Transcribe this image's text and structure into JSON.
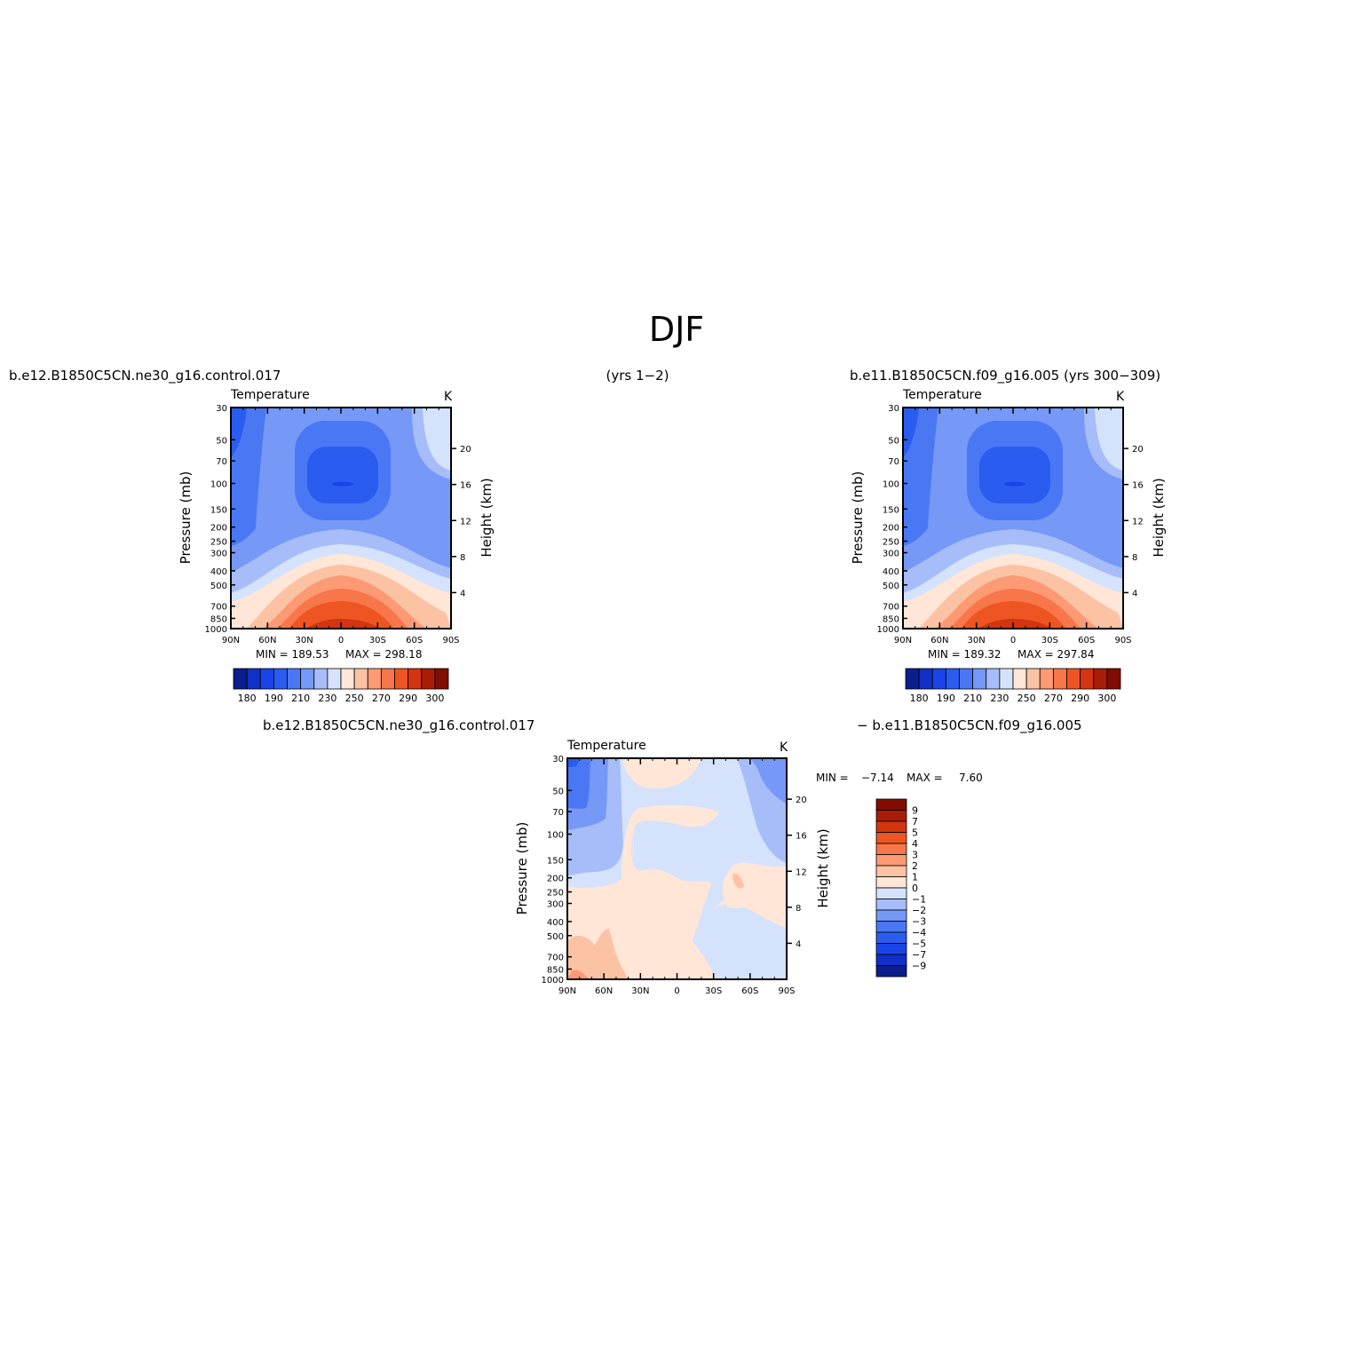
{
  "figure": {
    "season_title": "DJF",
    "header_left": "b.e12.B1850C5CN.ne30_g16.control.017",
    "header_mid": "(yrs 1−2)",
    "header_right": "b.e11.B1850C5CN.f09_g16.005 (yrs 300−309)",
    "diff_left": "b.e12.B1850C5CN.ne30_g16.control.017",
    "diff_right": "− b.e11.B1850C5CN.f09_g16.005"
  },
  "colors": {
    "abs_palette": [
      "#0a1e8c",
      "#1030c8",
      "#1a44e8",
      "#2a5cf0",
      "#4a78f5",
      "#7698f7",
      "#a6bdf9",
      "#d4e2fc",
      "#ffe6d6",
      "#fcc2a4",
      "#fb9a73",
      "#f7764a",
      "#ee5522",
      "#d23510",
      "#a91c08",
      "#800d00"
    ],
    "diff_palette": [
      "#0a1e8c",
      "#1030c8",
      "#1a44e8",
      "#2a5cf0",
      "#4a78f5",
      "#7698f7",
      "#a6bdf9",
      "#d4e2fc",
      "#ffe6d6",
      "#fcc2a4",
      "#fb9a73",
      "#f7764a",
      "#ee5522",
      "#d23510",
      "#a91c08",
      "#800d00"
    ]
  },
  "chart_data": [
    {
      "type": "contour",
      "field_label": "Temperature",
      "units": "K",
      "ylabel": "Pressure (mb)",
      "ylabel_right": "Height (km)",
      "x_ticks": [
        "90N",
        "60N",
        "30N",
        "0",
        "30S",
        "60S",
        "90S"
      ],
      "pressure_ticks": [
        30,
        50,
        70,
        100,
        150,
        200,
        250,
        300,
        400,
        500,
        700,
        850,
        1000
      ],
      "height_ticks": [
        4,
        8,
        12,
        16,
        20
      ],
      "min_label": "MIN = 189.53",
      "max_label": "MAX = 298.18",
      "min": 189.53,
      "max": 298.18,
      "levels": [
        180,
        185,
        190,
        195,
        200,
        205,
        210,
        215,
        220,
        230,
        240,
        250,
        260,
        270,
        280,
        290,
        300
      ],
      "colorbar_labels": [
        "180",
        "190",
        "210",
        "230",
        "250",
        "270",
        "290",
        "300"
      ]
    },
    {
      "type": "contour",
      "field_label": "Temperature",
      "units": "K",
      "ylabel": "Pressure (mb)",
      "ylabel_right": "Height (km)",
      "x_ticks": [
        "90N",
        "60N",
        "30N",
        "0",
        "30S",
        "60S",
        "90S"
      ],
      "pressure_ticks": [
        30,
        50,
        70,
        100,
        150,
        200,
        250,
        300,
        400,
        500,
        700,
        850,
        1000
      ],
      "height_ticks": [
        4,
        8,
        12,
        16,
        20
      ],
      "min_label": "MIN = 189.32",
      "max_label": "MAX = 297.84",
      "min": 189.32,
      "max": 297.84,
      "levels": [
        180,
        185,
        190,
        195,
        200,
        205,
        210,
        215,
        220,
        230,
        240,
        250,
        260,
        270,
        280,
        290,
        300
      ],
      "colorbar_labels": [
        "180",
        "190",
        "210",
        "230",
        "250",
        "270",
        "290",
        "300"
      ]
    },
    {
      "type": "contour",
      "field_label": "Temperature",
      "units": "K",
      "ylabel": "Pressure (mb)",
      "ylabel_right": "Height (km)",
      "x_ticks": [
        "90N",
        "60N",
        "30N",
        "0",
        "30S",
        "60S",
        "90S"
      ],
      "pressure_ticks": [
        30,
        50,
        70,
        100,
        150,
        200,
        250,
        300,
        400,
        500,
        700,
        850,
        1000
      ],
      "height_ticks": [
        4,
        8,
        12,
        16,
        20
      ],
      "min_label": "MIN =",
      "min_value_label": "−7.14",
      "max_label": "MAX =",
      "max_value_label": "7.60",
      "min": -7.14,
      "max": 7.6,
      "levels": [
        -9,
        -7,
        -5,
        -4,
        -3,
        -2,
        -1,
        0,
        1,
        2,
        3,
        4,
        5,
        7,
        9
      ],
      "colorbar_labels": [
        "9",
        "7",
        "5",
        "4",
        "3",
        "2",
        "1",
        "0",
        "−1",
        "−2",
        "−3",
        "−4",
        "−5",
        "−7",
        "−9"
      ]
    }
  ]
}
